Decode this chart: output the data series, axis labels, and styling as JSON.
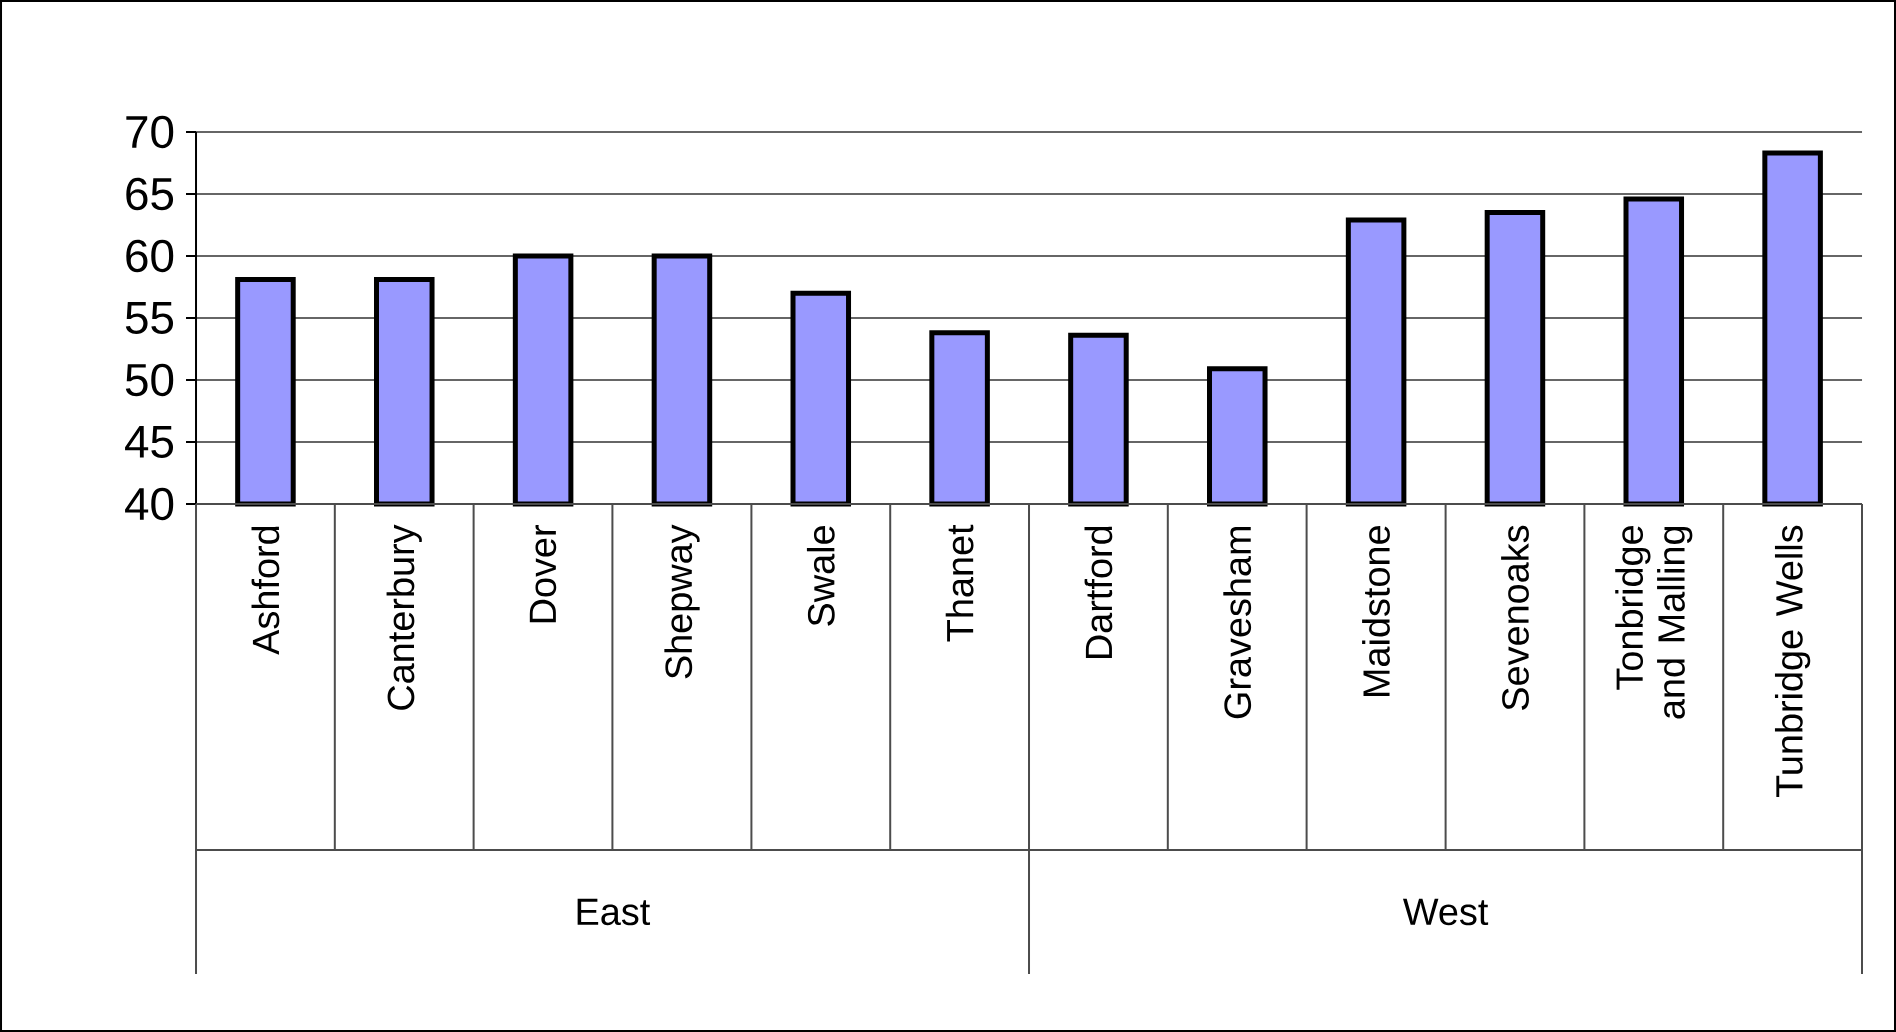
{
  "chart_data": {
    "type": "bar",
    "categories": [
      "Ashford",
      "Canterbury",
      "Dover",
      "Shepway",
      "Swale",
      "Thanet",
      "Dartford",
      "Gravesham",
      "Maidstone",
      "Sevenoaks",
      "Tonbridge and Malling",
      "Tunbridge Wells"
    ],
    "values": [
      58.1,
      58.1,
      60.0,
      60.0,
      57.0,
      53.8,
      53.6,
      50.9,
      62.9,
      63.5,
      64.6,
      68.3
    ],
    "color": "#9999ff",
    "ylim": [
      40,
      70
    ],
    "yticks": [
      40,
      45,
      50,
      55,
      60,
      65,
      70
    ],
    "grid": "y",
    "annotations": [
      "East",
      "West"
    ]
  }
}
